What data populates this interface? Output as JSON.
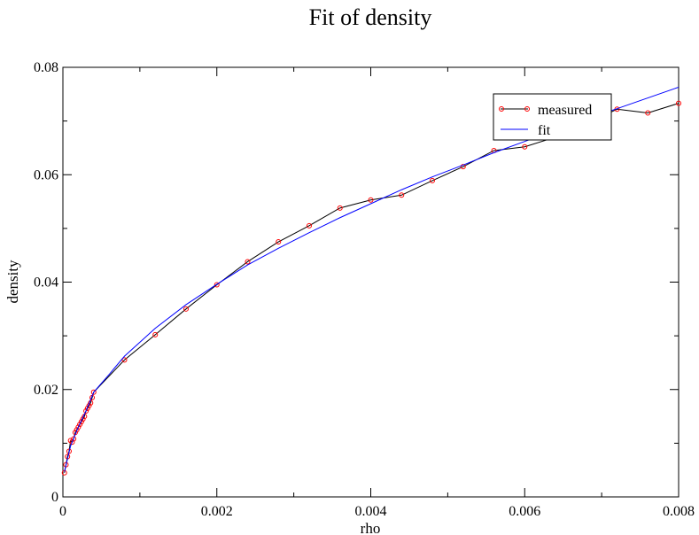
{
  "chart_data": {
    "type": "line",
    "title": "Fit of density",
    "xlabel": "rho",
    "ylabel": "density",
    "xlim": [
      0,
      0.008
    ],
    "ylim": [
      0,
      0.08
    ],
    "x_ticks": [
      0,
      0.002,
      0.004,
      0.006,
      0.008
    ],
    "x_tick_labels": [
      "0",
      "0.002",
      "0.004",
      "0.006",
      "0.008"
    ],
    "y_ticks": [
      0,
      0.02,
      0.04,
      0.06,
      0.08
    ],
    "y_tick_labels": [
      "0",
      "0.02",
      "0.04",
      "0.06",
      "0.08"
    ],
    "grid": false,
    "legend_position": "top-right",
    "series": [
      {
        "name": "measured",
        "color": "#000000",
        "marker_color": "#ff0000",
        "marker": "circle",
        "x": [
          2e-05,
          4e-05,
          6e-05,
          8e-05,
          0.0001,
          0.00012,
          0.00014,
          0.00016,
          0.00018,
          0.0002,
          0.00022,
          0.00024,
          0.00026,
          0.00028,
          0.0003,
          0.00032,
          0.00034,
          0.00036,
          0.00038,
          0.0004,
          0.0008,
          0.0012,
          0.0016,
          0.002,
          0.0024,
          0.0028,
          0.0032,
          0.0036,
          0.004,
          0.0044,
          0.0048,
          0.0052,
          0.0056,
          0.006,
          0.0064,
          0.0068,
          0.0072,
          0.0076,
          0.008
        ],
        "y": [
          0.0045,
          0.006,
          0.0075,
          0.0085,
          0.0105,
          0.0102,
          0.0108,
          0.012,
          0.0125,
          0.013,
          0.0135,
          0.014,
          0.0145,
          0.015,
          0.016,
          0.0165,
          0.017,
          0.0175,
          0.0185,
          0.0195,
          0.0255,
          0.0302,
          0.035,
          0.0395,
          0.0438,
          0.0475,
          0.0505,
          0.0538,
          0.0553,
          0.0562,
          0.0589,
          0.0615,
          0.0645,
          0.0652,
          0.067,
          0.0695,
          0.0722,
          0.0715,
          0.0733
        ]
      },
      {
        "name": "fit",
        "color": "#0000ff",
        "marker": "none",
        "x": [
          2e-05,
          0.0001,
          0.0002,
          0.0003,
          0.0004,
          0.0006,
          0.0008,
          0.001,
          0.0012,
          0.0016,
          0.002,
          0.0024,
          0.0028,
          0.0032,
          0.0036,
          0.004,
          0.0044,
          0.0048,
          0.0052,
          0.0056,
          0.006,
          0.0064,
          0.0068,
          0.0072,
          0.0076,
          0.008
        ],
        "y": [
          0.0047,
          0.0095,
          0.013,
          0.016,
          0.0195,
          0.0228,
          0.0262,
          0.0288,
          0.0314,
          0.0358,
          0.0396,
          0.0432,
          0.0463,
          0.0492,
          0.052,
          0.0546,
          0.0572,
          0.0596,
          0.0618,
          0.0641,
          0.0662,
          0.0683,
          0.0704,
          0.0723,
          0.0743,
          0.0763
        ]
      }
    ]
  }
}
